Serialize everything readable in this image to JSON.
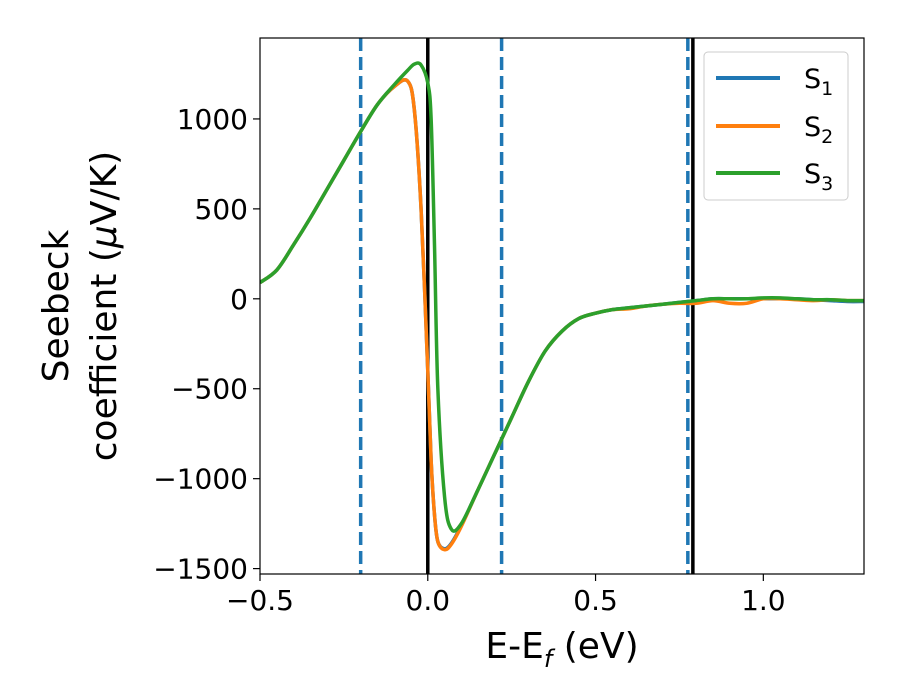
{
  "chart_data": {
    "type": "line",
    "xlabel": {
      "main": "E-E",
      "sub": "f",
      "unit": " (eV)"
    },
    "ylabel": {
      "line1": "Seebeck",
      "line2": "coefficient  (",
      "mu": "μ",
      "unit": "V/K)"
    },
    "xlim": [
      -0.5,
      1.3
    ],
    "ylim": [
      -1530,
      1450
    ],
    "xticks": [
      -0.5,
      0.0,
      0.5,
      1.0
    ],
    "xtick_labels": [
      "−0.5",
      "0.0",
      "0.5",
      "1.0"
    ],
    "yticks": [
      -1500,
      -1000,
      -500,
      0,
      500,
      1000
    ],
    "ytick_labels": [
      "−1500",
      "−1000",
      "−500",
      "0",
      "500",
      "1000"
    ],
    "legend": {
      "position": "top-right"
    },
    "colors": {
      "S1": "#1f77b4",
      "S2": "#ff7f0e",
      "S3": "#2ca02c",
      "solid_vline": "#000000",
      "dashed_vline": "#1f77b4"
    },
    "vlines_solid": [
      0.0,
      0.79
    ],
    "vlines_dashed": [
      -0.2,
      0.22,
      0.775
    ],
    "series": [
      {
        "name": "S1",
        "legend_main": "S",
        "legend_sub": "1",
        "color": "#1f77b4",
        "x": [
          -0.5,
          -0.45,
          -0.4,
          -0.35,
          -0.3,
          -0.25,
          -0.2,
          -0.15,
          -0.1,
          -0.06,
          -0.04,
          -0.02,
          0.0,
          0.01,
          0.02,
          0.03,
          0.05,
          0.07,
          0.1,
          0.15,
          0.2,
          0.25,
          0.3,
          0.35,
          0.4,
          0.45,
          0.5,
          0.55,
          0.6,
          0.65,
          0.7,
          0.75,
          0.8,
          0.85,
          0.9,
          0.95,
          1.0,
          1.05,
          1.1,
          1.15,
          1.2,
          1.25,
          1.3
        ],
        "y": [
          90,
          160,
          300,
          450,
          610,
          770,
          930,
          1080,
          1180,
          1210,
          1050,
          500,
          -400,
          -900,
          -1200,
          -1350,
          -1390,
          -1360,
          -1260,
          -1060,
          -860,
          -660,
          -460,
          -290,
          -180,
          -110,
          -80,
          -60,
          -50,
          -40,
          -30,
          -20,
          -10,
          0,
          0,
          0,
          0,
          0,
          0,
          -5,
          -10,
          -15,
          -15
        ]
      },
      {
        "name": "S2",
        "legend_main": "S",
        "legend_sub": "2",
        "color": "#ff7f0e",
        "x": [
          -0.5,
          -0.45,
          -0.4,
          -0.35,
          -0.3,
          -0.25,
          -0.2,
          -0.15,
          -0.1,
          -0.06,
          -0.04,
          -0.02,
          0.0,
          0.01,
          0.02,
          0.03,
          0.05,
          0.07,
          0.1,
          0.15,
          0.2,
          0.25,
          0.3,
          0.35,
          0.4,
          0.45,
          0.5,
          0.55,
          0.6,
          0.65,
          0.7,
          0.75,
          0.8,
          0.85,
          0.9,
          0.95,
          1.0,
          1.05,
          1.1,
          1.15,
          1.2,
          1.25,
          1.3
        ],
        "y": [
          90,
          160,
          300,
          450,
          610,
          770,
          930,
          1080,
          1180,
          1210,
          1050,
          500,
          -400,
          -900,
          -1200,
          -1350,
          -1395,
          -1365,
          -1265,
          -1060,
          -860,
          -660,
          -460,
          -290,
          -180,
          -110,
          -80,
          -60,
          -55,
          -40,
          -30,
          -25,
          -25,
          -10,
          -25,
          -25,
          0,
          0,
          -5,
          -10,
          -5,
          -10,
          -10
        ]
      },
      {
        "name": "S3",
        "legend_main": "S",
        "legend_sub": "3",
        "color": "#2ca02c",
        "x": [
          -0.5,
          -0.45,
          -0.4,
          -0.35,
          -0.3,
          -0.25,
          -0.2,
          -0.15,
          -0.1,
          -0.06,
          -0.04,
          -0.02,
          0.0,
          0.01,
          0.02,
          0.03,
          0.05,
          0.07,
          0.1,
          0.15,
          0.2,
          0.25,
          0.3,
          0.35,
          0.4,
          0.45,
          0.5,
          0.55,
          0.6,
          0.65,
          0.7,
          0.75,
          0.8,
          0.85,
          0.9,
          0.95,
          1.0,
          1.05,
          1.1,
          1.15,
          1.2,
          1.25,
          1.3
        ],
        "y": [
          90,
          160,
          300,
          450,
          610,
          770,
          930,
          1080,
          1190,
          1270,
          1305,
          1300,
          1200,
          1000,
          300,
          -500,
          -1100,
          -1280,
          -1250,
          -1060,
          -860,
          -660,
          -460,
          -290,
          -180,
          -110,
          -80,
          -60,
          -50,
          -40,
          -30,
          -20,
          -10,
          0,
          0,
          0,
          5,
          5,
          0,
          -5,
          -5,
          -10,
          -10
        ]
      }
    ]
  }
}
